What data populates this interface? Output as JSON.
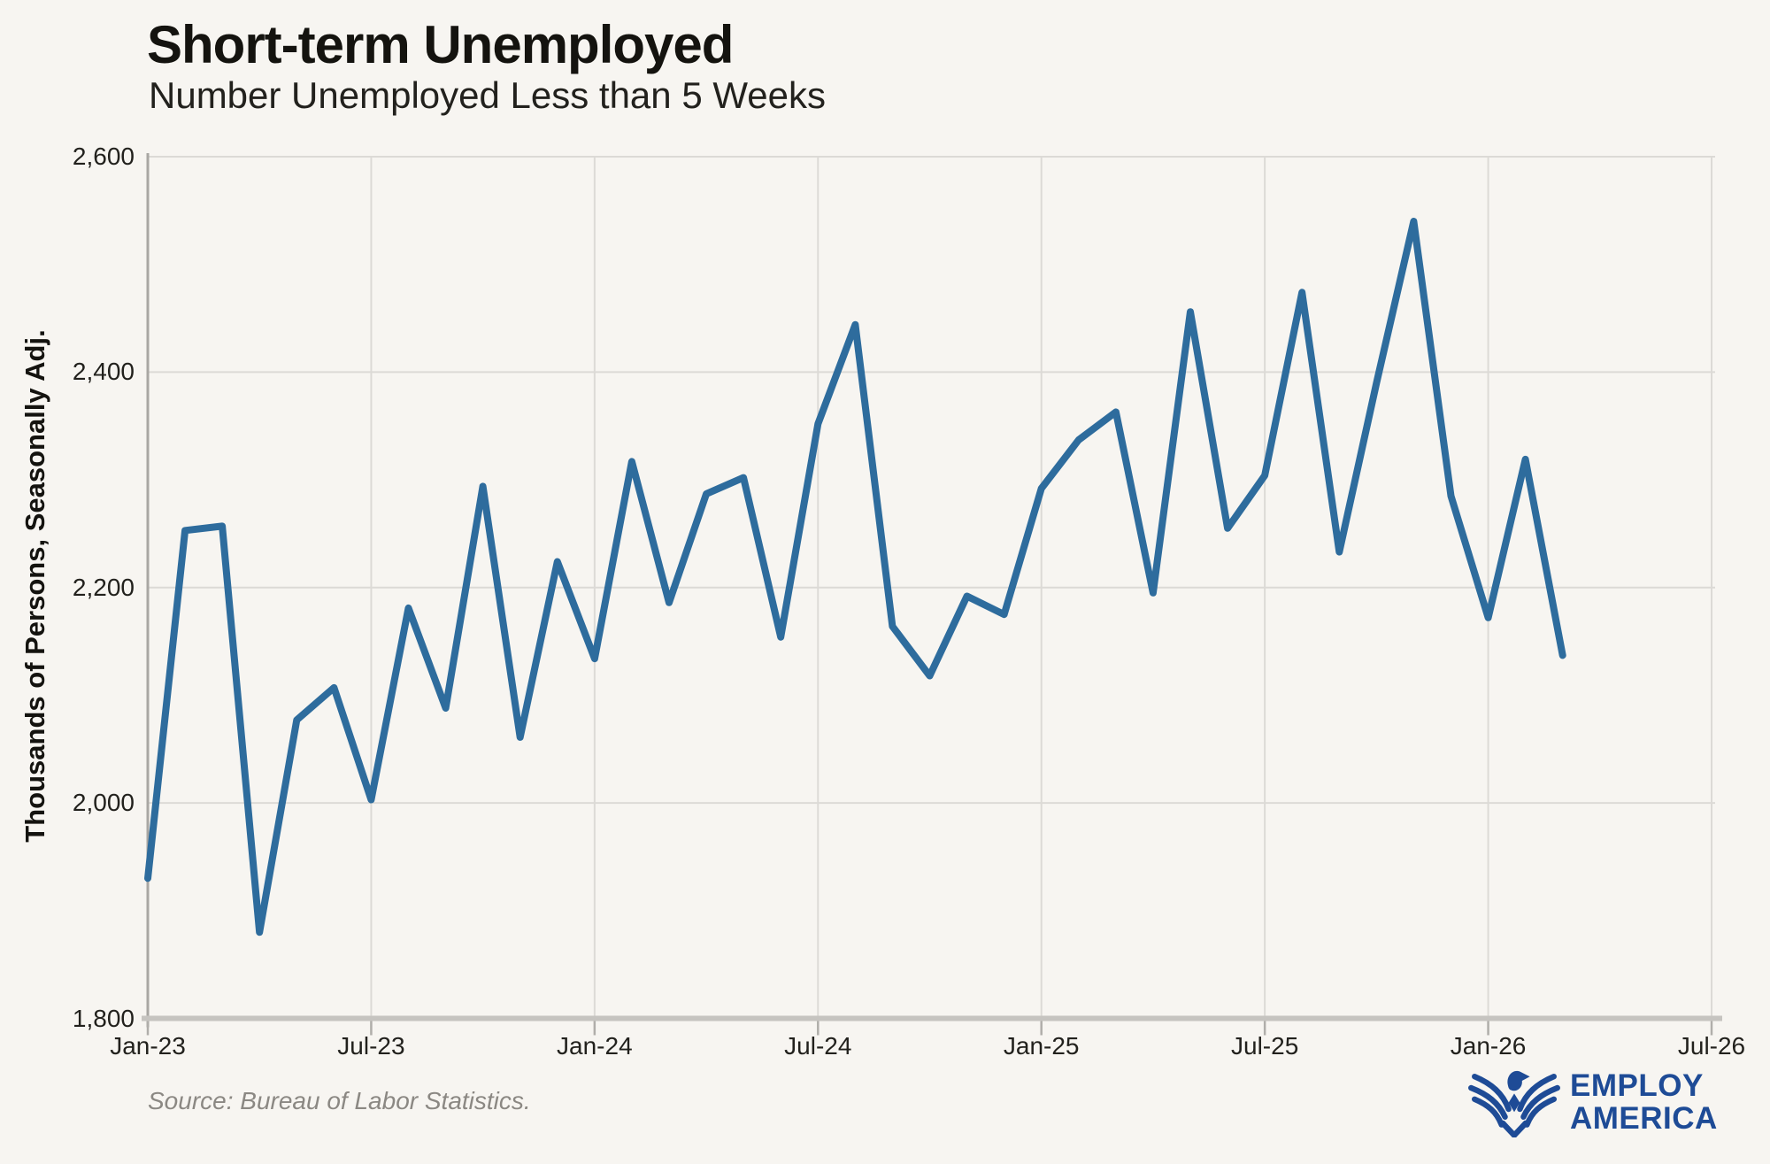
{
  "header": {
    "title": "Short-term Unemployed",
    "subtitle": "Number Unemployed Less than 5 Weeks"
  },
  "y_axis": {
    "title": "Thousands of Persons, Seasonally Adj.",
    "tick_labels": [
      "2,600",
      "2,400",
      "2,200",
      "2,000",
      "1,800"
    ],
    "tick_values": [
      2600,
      2400,
      2200,
      2000,
      1800
    ]
  },
  "x_axis": {
    "tick_labels": [
      "Jan-23",
      "Jul-23",
      "Jan-24",
      "Jul-24",
      "Jan-25",
      "Jul-25",
      "Jan-26",
      "Jul-26"
    ]
  },
  "footer": {
    "source": "Source: Bureau of Labor Statistics.",
    "logo": {
      "line1": "EMPLOY",
      "line2": "AMERICA"
    }
  },
  "colors": {
    "background": "#f7f5f1",
    "line": "#2e6c9d",
    "grid": "#dcdad6",
    "axis_bottom": "#c6c4c0",
    "axis_left": "#a9a7a3",
    "tick_mark": "#b0aeaa",
    "logo_blue": "#1e4b96",
    "text": "#22211d",
    "muted": "#8b8883"
  },
  "chart_data": {
    "type": "line",
    "title": "Short-term Unemployed",
    "subtitle": "Number Unemployed Less than 5 Weeks",
    "ylabel": "Thousands of Persons, Seasonally Adj.",
    "xlabel": "",
    "unit": "thousands of persons",
    "ylim": [
      1800,
      2600
    ],
    "y_gridlines": [
      1800,
      2000,
      2200,
      2400,
      2600
    ],
    "x_axis_span_months": [
      "Jan-23",
      "Jul-26"
    ],
    "grid": true,
    "legend": "none",
    "categories": [
      "Jan-23",
      "Feb-23",
      "Mar-23",
      "Apr-23",
      "May-23",
      "Jun-23",
      "Jul-23",
      "Aug-23",
      "Sep-23",
      "Oct-23",
      "Nov-23",
      "Dec-23",
      "Jan-24",
      "Feb-24",
      "Mar-24",
      "Apr-24",
      "May-24",
      "Jun-24",
      "Jul-24",
      "Aug-24",
      "Sep-24",
      "Oct-24",
      "Nov-24",
      "Dec-24",
      "Jan-25",
      "Feb-25",
      "Mar-25",
      "Apr-25",
      "May-25",
      "Jun-25",
      "Jul-25",
      "Aug-25",
      "Sep-25",
      "Oct-25",
      "Nov-25",
      "Dec-25",
      "Jan-26",
      "Feb-26",
      "Mar-26"
    ],
    "values": [
      1930,
      2253,
      2257,
      1880,
      2077,
      2107,
      2003,
      2181,
      2088,
      2294,
      2061,
      2224,
      2134,
      2317,
      2186,
      2287,
      2302,
      2154,
      2352,
      2444,
      2164,
      2118,
      2192,
      2175,
      2292,
      2337,
      2363,
      2195,
      2456,
      2255,
      2304,
      2474,
      2233,
      2390,
      2540,
      2285,
      2172,
      2319,
      2137
    ]
  }
}
